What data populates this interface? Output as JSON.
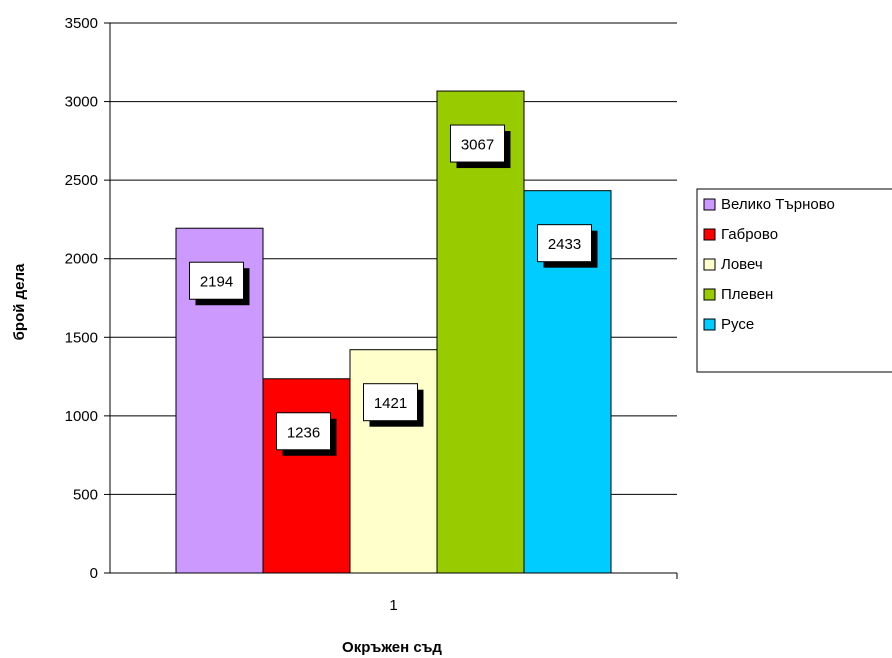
{
  "chart_data": {
    "type": "bar",
    "categories": [
      "1"
    ],
    "series": [
      {
        "name": "Велико Търново",
        "values": [
          2194
        ],
        "color": "#CC99FF"
      },
      {
        "name": "Габрово",
        "values": [
          1236
        ],
        "color": "#FF0000"
      },
      {
        "name": "Ловеч",
        "values": [
          1421
        ],
        "color": "#FFFFCC"
      },
      {
        "name": "Плевен",
        "values": [
          3067
        ],
        "color": "#99CC00"
      },
      {
        "name": "Русе",
        "values": [
          2433
        ],
        "color": "#00CCFF"
      }
    ],
    "xlabel": "Окръжен съд",
    "ylabel": "брой дела",
    "ylim": [
      0,
      3500
    ],
    "yticks": [
      "0",
      "500",
      "1000",
      "1500",
      "2000",
      "2500",
      "3000",
      "3500"
    ],
    "grid": true,
    "legend_position": "right"
  }
}
